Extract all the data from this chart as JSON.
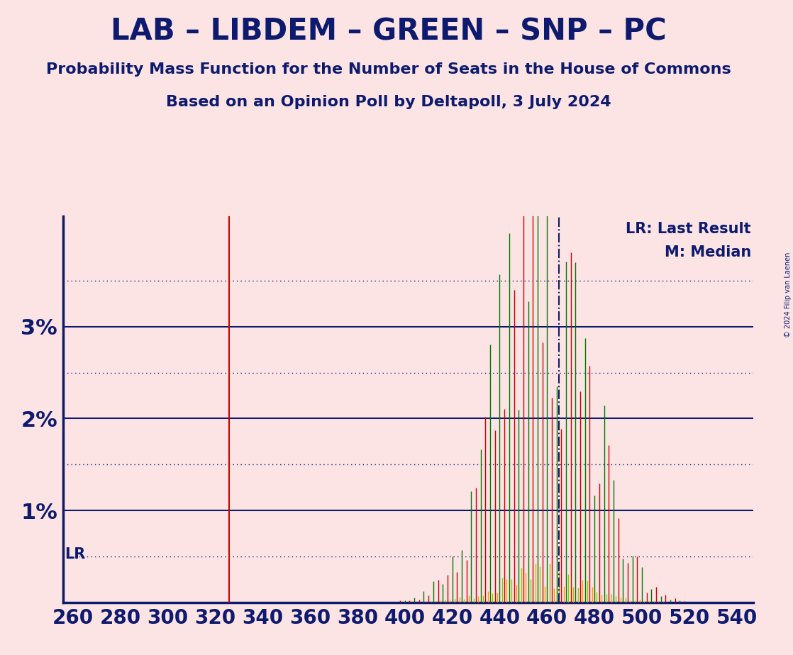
{
  "title1": "LAB – LIBDEM – GREEN – SNP – PC",
  "title2": "Probability Mass Function for the Number of Seats in the House of Commons",
  "title3": "Based on an Opinion Poll by Deltapoll, 3 July 2024",
  "copyright": "© 2024 Filip van Laenen",
  "background_color": "#fce4e4",
  "title_color": "#0d1a6e",
  "lr_value": 326,
  "median_value": 465,
  "x_min": 258,
  "x_max": 544,
  "y_max": 0.042,
  "yticks": [
    0.0,
    0.01,
    0.02,
    0.03
  ],
  "ytick_labels": [
    "",
    "1%",
    "2%",
    "3%"
  ],
  "x_ticks": [
    260,
    280,
    300,
    320,
    340,
    360,
    380,
    400,
    420,
    440,
    460,
    480,
    500,
    520,
    540
  ],
  "dotted_lines": [
    0.005,
    0.015,
    0.025,
    0.035
  ],
  "colors_cycle": [
    "#cc0000",
    "#ff9900",
    "#007700",
    "#88cc00"
  ],
  "lr_label": "LR",
  "lr_color": "#cc0000",
  "median_color": "#0d1a6e",
  "legend_lr": "LR: Last Result",
  "legend_m": "M: Median",
  "axis_color": "#0d1a6e",
  "mu": 458,
  "sigma": 18,
  "seed": 42,
  "noise_low": 0.0,
  "noise_high": 1.0,
  "spike_factor": 4.0
}
